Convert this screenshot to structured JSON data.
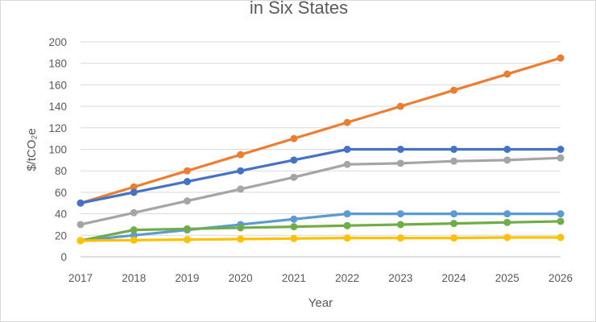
{
  "chart_data": {
    "type": "line",
    "title": "in Six States",
    "xlabel": "Year",
    "ylabel": "$/tCO₂e",
    "x": [
      2017,
      2018,
      2019,
      2020,
      2021,
      2022,
      2023,
      2024,
      2025,
      2026
    ],
    "ylim": [
      0,
      200
    ],
    "yticks": [
      0,
      20,
      40,
      60,
      80,
      100,
      120,
      140,
      160,
      180,
      200
    ],
    "grid": true,
    "legend": "none",
    "series": [
      {
        "color": "#ED7D31",
        "values": [
          50,
          65,
          80,
          95,
          110,
          125,
          140,
          155,
          170,
          185
        ]
      },
      {
        "color": "#4472C4",
        "values": [
          50,
          60,
          70,
          80,
          90,
          100,
          100,
          100,
          100,
          100
        ]
      },
      {
        "color": "#A5A5A5",
        "values": [
          30,
          41,
          52,
          63,
          74,
          86,
          87,
          89,
          90,
          92
        ]
      },
      {
        "color": "#5B9BD5",
        "values": [
          15,
          20,
          25,
          30,
          35,
          40,
          40,
          40,
          40,
          40
        ]
      },
      {
        "color": "#70AD47",
        "values": [
          15,
          25,
          26,
          27,
          28,
          29,
          30,
          31,
          32,
          33
        ]
      },
      {
        "color": "#FFC000",
        "values": [
          15,
          15.5,
          16,
          16.5,
          17,
          17.5,
          17.5,
          17.5,
          18,
          18
        ]
      }
    ]
  }
}
